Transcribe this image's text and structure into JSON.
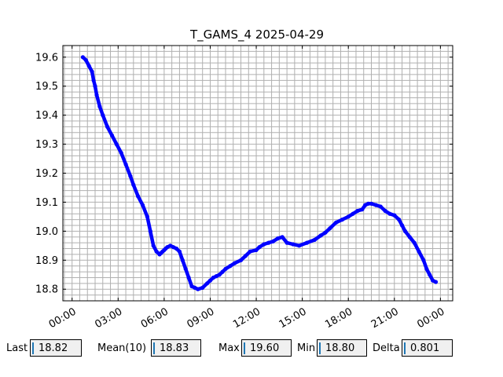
{
  "chart_data": {
    "type": "line",
    "title": "T_GAMS_4 2025-04-29",
    "xlabel": "",
    "ylabel": "",
    "x_range_hours": [
      -0.6,
      24.8
    ],
    "ylim": [
      18.76,
      19.64
    ],
    "x_ticks": [
      {
        "hour": 0,
        "label": "00:00"
      },
      {
        "hour": 3,
        "label": "03:00"
      },
      {
        "hour": 6,
        "label": "06:00"
      },
      {
        "hour": 9,
        "label": "09:00"
      },
      {
        "hour": 12,
        "label": "12:00"
      },
      {
        "hour": 15,
        "label": "15:00"
      },
      {
        "hour": 18,
        "label": "18:00"
      },
      {
        "hour": 21,
        "label": "21:00"
      },
      {
        "hour": 24,
        "label": "00:00"
      }
    ],
    "y_ticks": [
      "18.8",
      "18.9",
      "19.0",
      "19.1",
      "19.2",
      "19.3",
      "19.4",
      "19.5",
      "19.6"
    ],
    "grid": true,
    "series": [
      {
        "color": "#0000ff",
        "x_hours": [
          0.7,
          0.9,
          1.1,
          1.3,
          1.4,
          1.5,
          1.6,
          1.8,
          2.0,
          2.3,
          2.6,
          2.9,
          3.2,
          3.5,
          3.8,
          4.0,
          4.3,
          4.6,
          4.9,
          5.1,
          5.3,
          5.5,
          5.7,
          5.8,
          5.9,
          6.0,
          6.1,
          6.2,
          6.4,
          6.6,
          6.8,
          7.0,
          7.2,
          7.4,
          7.6,
          7.8,
          8.0,
          8.2,
          8.5,
          8.8,
          9.0,
          9.2,
          9.4,
          9.6,
          9.8,
          10.0,
          10.3,
          10.6,
          11.0,
          11.3,
          11.6,
          12.0,
          12.2,
          12.5,
          12.8,
          13.1,
          13.4,
          13.7,
          14.0,
          14.4,
          14.8,
          15.3,
          15.8,
          16.2,
          16.5,
          16.8,
          17.2,
          17.6,
          18.0,
          18.3,
          18.6,
          18.9,
          19.1,
          19.3,
          19.5,
          19.8,
          20.1,
          20.4,
          20.7,
          21.0,
          21.3,
          21.5,
          21.7,
          22.0,
          22.3,
          22.6,
          22.9,
          23.1,
          23.3,
          23.5,
          23.7
        ],
        "y": [
          19.6,
          19.59,
          19.57,
          19.55,
          19.52,
          19.5,
          19.47,
          19.43,
          19.4,
          19.36,
          19.33,
          19.3,
          19.27,
          19.23,
          19.19,
          19.16,
          19.12,
          19.09,
          19.05,
          19.0,
          18.95,
          18.93,
          18.92,
          18.925,
          18.93,
          18.935,
          18.94,
          18.945,
          18.95,
          18.945,
          18.94,
          18.93,
          18.9,
          18.87,
          18.84,
          18.81,
          18.805,
          18.8,
          18.805,
          18.82,
          18.83,
          18.84,
          18.845,
          18.85,
          18.86,
          18.87,
          18.88,
          18.89,
          18.9,
          18.915,
          18.93,
          18.935,
          18.945,
          18.955,
          18.96,
          18.965,
          18.975,
          18.98,
          18.96,
          18.955,
          18.95,
          18.96,
          18.97,
          18.985,
          18.995,
          19.01,
          19.03,
          19.04,
          19.05,
          19.06,
          19.07,
          19.075,
          19.09,
          19.095,
          19.095,
          19.09,
          19.085,
          19.07,
          19.06,
          19.055,
          19.04,
          19.02,
          19.0,
          18.98,
          18.96,
          18.93,
          18.9,
          18.87,
          18.85,
          18.83,
          18.825
        ]
      }
    ]
  },
  "stats": {
    "last": {
      "label": "Last",
      "value": "18.82"
    },
    "mean": {
      "label": "Mean(10)",
      "value": "18.83"
    },
    "max": {
      "label": "Max",
      "value": "19.60"
    },
    "min": {
      "label": "Min",
      "value": "18.80"
    },
    "delta": {
      "label": "Delta",
      "value": "0.801"
    }
  }
}
